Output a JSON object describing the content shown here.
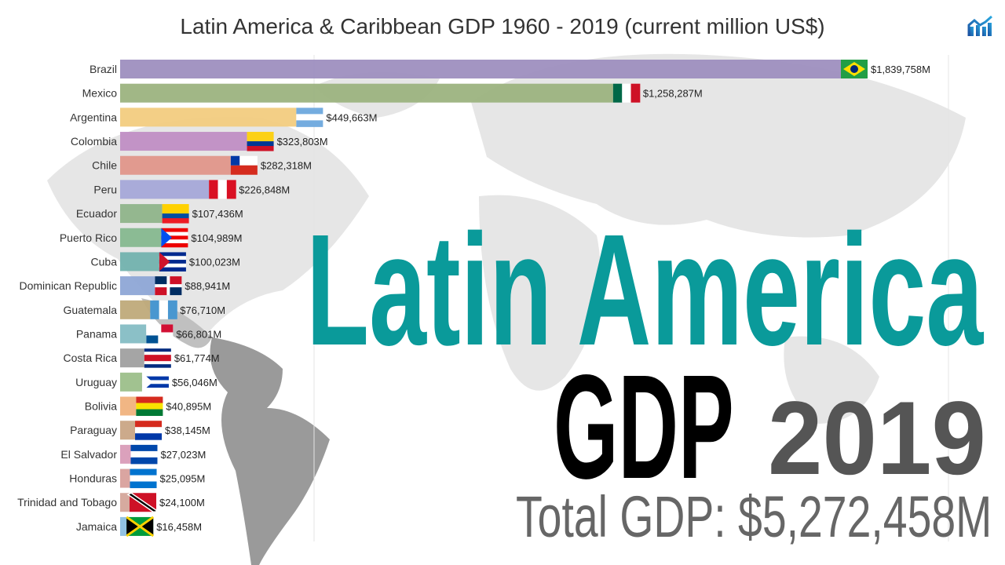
{
  "chart_data": {
    "type": "bar",
    "orientation": "horizontal",
    "title": "Latin America & Caribbean GDP 1960 - 2019 (current million US$)",
    "year": "2019",
    "categories": [
      "Brazil",
      "Mexico",
      "Argentina",
      "Colombia",
      "Chile",
      "Peru",
      "Ecuador",
      "Puerto Rico",
      "Cuba",
      "Dominican Republic",
      "Guatemala",
      "Panama",
      "Costa Rica",
      "Uruguay",
      "Bolivia",
      "Paraguay",
      "El Salvador",
      "Honduras",
      "Trinidad and Tobago",
      "Jamaica"
    ],
    "values": [
      1839758,
      1258287,
      449663,
      323803,
      282318,
      226848,
      107436,
      104989,
      100023,
      88941,
      76710,
      66801,
      61774,
      56046,
      40895,
      38145,
      27023,
      25095,
      24100,
      16458
    ],
    "value_labels": [
      "$1,839,758M",
      "$1,258,287M",
      "$449,663M",
      "$323,803M",
      "$282,318M",
      "$226,848M",
      "$107,436M",
      "$104,989M",
      "$100,023M",
      "$88,941M",
      "$76,710M",
      "$66,801M",
      "$61,774M",
      "$56,046M",
      "$40,895M",
      "$38,145M",
      "$27,023M",
      "$25,095M",
      "$24,100M",
      "$16,458M"
    ],
    "colors": [
      "#9e8fbf",
      "#9cb37f",
      "#f2cc80",
      "#c08ec4",
      "#e0968a",
      "#a5a8d8",
      "#8fb48a",
      "#86b88f",
      "#72b2ae",
      "#8ea6d6",
      "#bfaa7a",
      "#85bdc4",
      "#a0a0a0",
      "#9cbf8a",
      "#f0b27d",
      "#c9a585",
      "#d99cb8",
      "#d8a09c",
      "#d4a59a",
      "#8cbfe0"
    ],
    "unit": "current million US$"
  },
  "overlay": {
    "headline": "Latin America",
    "gdp": "GDP",
    "year": "2019",
    "total": "Total GDP: $5,272,458M"
  },
  "colors": {
    "headline": "#0a9a9a",
    "gdp": "#000000",
    "year": "#555555",
    "total": "#666666"
  },
  "logo_icon": "chart-growth-icon"
}
